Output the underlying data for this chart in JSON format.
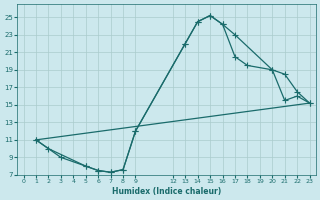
{
  "xlabel": "Humidex (Indice chaleur)",
  "background_color": "#cce8ed",
  "grid_color": "#aacccc",
  "line_color": "#1a6b6b",
  "xlim": [
    -0.5,
    23.5
  ],
  "ylim": [
    7,
    26.5
  ],
  "xticks": [
    0,
    1,
    2,
    3,
    4,
    5,
    6,
    7,
    8,
    9,
    12,
    13,
    14,
    15,
    16,
    17,
    18,
    19,
    20,
    21,
    22,
    23
  ],
  "yticks": [
    7,
    9,
    11,
    13,
    15,
    17,
    19,
    21,
    23,
    25
  ],
  "curve1_x": [
    1,
    3,
    5,
    6,
    7,
    8,
    9,
    13,
    14,
    15,
    16,
    17,
    20,
    21,
    22,
    23
  ],
  "curve1_y": [
    11,
    9,
    8.0,
    7.5,
    7.3,
    7.6,
    12,
    22,
    24.5,
    25.2,
    24.2,
    23,
    19.0,
    18.5,
    16.5,
    15.2
  ],
  "curve2_x": [
    1,
    2,
    5,
    6,
    7,
    8,
    9,
    13,
    14,
    15,
    16,
    17,
    18,
    20,
    21,
    22,
    23
  ],
  "curve2_y": [
    11,
    10,
    8.0,
    7.5,
    7.3,
    7.6,
    12,
    22,
    24.5,
    25.2,
    24.2,
    20.5,
    19.5,
    19.0,
    15.5,
    16.0,
    15.2
  ],
  "line3_x": [
    1,
    23
  ],
  "line3_y": [
    11,
    15.2
  ],
  "marker_size": 2.5
}
